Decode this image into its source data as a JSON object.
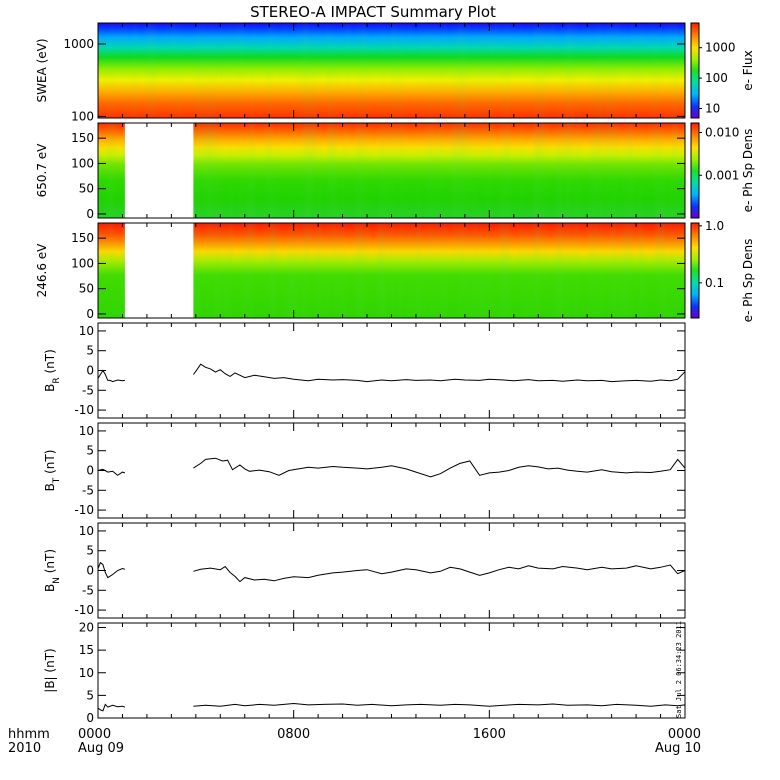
{
  "title": "STEREO-A IMPACT Summary Plot",
  "footer": {
    "left_top": "hhmm",
    "left_bottom": "2010",
    "time_ticks": [
      {
        "label": "0000",
        "sub": "Aug 09",
        "hour": 0
      },
      {
        "label": "0800",
        "sub": "",
        "hour": 8
      },
      {
        "label": "1600",
        "sub": "",
        "hour": 16
      },
      {
        "label": "0000",
        "sub": "Aug 10",
        "hour": 24
      }
    ],
    "stamp": "Sat Jul  2 06:34:23 2011"
  },
  "colors": {
    "frame": "#000000",
    "trace": "#000000",
    "nodata": "#ffffff"
  },
  "chart_data": [
    {
      "type": "heatmap",
      "id": "swea",
      "ylabel": "SWEA (eV)",
      "y_scale": "log",
      "ylim": [
        95,
        1950
      ],
      "yticks": [
        100,
        1000
      ],
      "ytick_labels": [
        "100",
        "1000"
      ],
      "colorbar_label": "e- Flux",
      "colorbar_scale": "log",
      "colorbar_ticks": [
        "10",
        "100",
        "1000"
      ],
      "data_gaps_hours": []
    },
    {
      "type": "heatmap",
      "id": "pad650",
      "ylabel": "650.7 eV",
      "ylim": [
        -8,
        180
      ],
      "yticks": [
        0,
        50,
        100,
        150
      ],
      "colorbar_label": "e- Ph Sp Dens",
      "colorbar_scale": "log",
      "colorbar_ticks": [
        "0.010",
        "0.001"
      ],
      "data_gaps_hours": [
        [
          1.1,
          3.9
        ]
      ]
    },
    {
      "type": "heatmap",
      "id": "pad246",
      "ylabel": "246.6 eV",
      "ylim": [
        -8,
        180
      ],
      "yticks": [
        0,
        50,
        100,
        150
      ],
      "colorbar_label": "e- Ph Sp Dens",
      "colorbar_scale": "log",
      "colorbar_ticks": [
        "1.0",
        "0.1"
      ],
      "data_gaps_hours": [
        [
          1.1,
          3.9
        ]
      ]
    },
    {
      "type": "line",
      "id": "br",
      "ylabel_main": "B",
      "ylabel_sub": "R",
      "ylabel_unit": " (nT)",
      "ylim": [
        -12,
        12
      ],
      "yticks": [
        -10,
        -5,
        0,
        5,
        10
      ],
      "series": [
        {
          "x": [
            0,
            0.1,
            0.2,
            0.3,
            0.4,
            0.5,
            0.6,
            0.8,
            1.0,
            1.1
          ],
          "y": [
            -2,
            -1,
            0,
            -1,
            -2.5,
            -2.5,
            -2.8,
            -2.4,
            -2.6,
            -2.5
          ]
        },
        {
          "x": [
            3.9,
            4.0,
            4.2,
            4.4,
            4.6,
            4.8,
            5.0,
            5.2,
            5.4,
            5.6,
            6.0,
            6.4,
            6.8,
            7.2,
            7.6,
            8.0,
            8.6,
            9.0,
            9.6,
            10.0,
            10.6,
            11.0,
            11.6,
            12.0,
            12.6,
            13.0,
            13.6,
            14.0,
            14.6,
            15.0,
            15.6,
            16.0,
            16.6,
            17.0,
            17.6,
            18.0,
            18.6,
            19.0,
            19.6,
            20.0,
            20.6,
            21.0,
            21.6,
            22.0,
            22.6,
            23.0,
            23.4,
            23.7,
            24.0
          ],
          "y": [
            -1,
            -0.2,
            1.6,
            0.8,
            0.4,
            -0.4,
            0.2,
            -0.8,
            -1.5,
            -0.6,
            -1.8,
            -1.2,
            -1.6,
            -2,
            -1.8,
            -2.2,
            -2.6,
            -2.2,
            -2.4,
            -2.3,
            -2.5,
            -2.8,
            -2.4,
            -2.6,
            -2.3,
            -2.5,
            -2.4,
            -2.6,
            -2.2,
            -2.4,
            -2.5,
            -2.2,
            -2.4,
            -2.6,
            -2.3,
            -2.6,
            -2.5,
            -2.7,
            -2.4,
            -2.6,
            -2.5,
            -2.8,
            -2.6,
            -2.5,
            -2.7,
            -2.4,
            -2.6,
            -2.2,
            -0.3
          ]
        }
      ]
    },
    {
      "type": "line",
      "id": "bt",
      "ylabel_main": "B",
      "ylabel_sub": "T",
      "ylabel_unit": " (nT)",
      "ylim": [
        -12,
        12
      ],
      "yticks": [
        -10,
        -5,
        0,
        5,
        10
      ],
      "series": [
        {
          "x": [
            0,
            0.2,
            0.4,
            0.6,
            0.8,
            1.0,
            1.1
          ],
          "y": [
            0,
            0.3,
            -0.4,
            -0.2,
            -1.2,
            -0.4,
            -0.6
          ]
        },
        {
          "x": [
            3.9,
            4.2,
            4.4,
            4.8,
            5.1,
            5.3,
            5.5,
            5.8,
            6.0,
            6.2,
            6.6,
            7.0,
            7.4,
            7.8,
            8.2,
            8.6,
            9.0,
            9.6,
            10.0,
            10.6,
            11.0,
            11.6,
            12.0,
            12.6,
            13.0,
            13.6,
            14.0,
            14.4,
            14.8,
            15.2,
            15.6,
            16.0,
            16.4,
            16.8,
            17.2,
            17.6,
            18.0,
            18.4,
            18.8,
            19.2,
            19.6,
            20.0,
            20.6,
            21.0,
            21.6,
            22.0,
            22.6,
            23.0,
            23.4,
            23.7,
            24.0
          ],
          "y": [
            0.6,
            1.8,
            2.8,
            3.1,
            2.4,
            2.6,
            0.2,
            1.4,
            0.4,
            -0.2,
            0.1,
            -0.3,
            -1.2,
            0,
            0.4,
            0.8,
            0.6,
            1,
            0.8,
            0.6,
            0.4,
            0.8,
            1.2,
            0.4,
            -0.4,
            -1.6,
            -0.8,
            0.6,
            1.8,
            2.4,
            -1.2,
            -0.6,
            -0.4,
            0,
            0.8,
            1.2,
            0.9,
            0.4,
            0.6,
            0.1,
            -0.2,
            -0.4,
            0.2,
            -0.3,
            -0.6,
            -0.4,
            -0.5,
            -0.2,
            0.2,
            2.8,
            0.6
          ]
        }
      ]
    },
    {
      "type": "line",
      "id": "bn",
      "ylabel_main": "B",
      "ylabel_sub": "N",
      "ylabel_unit": " (nT)",
      "ylim": [
        -12,
        12
      ],
      "yticks": [
        -10,
        -5,
        0,
        5,
        10
      ],
      "series": [
        {
          "x": [
            0,
            0.1,
            0.2,
            0.3,
            0.4,
            0.6,
            0.8,
            1.0,
            1.1
          ],
          "y": [
            0.5,
            2,
            1.5,
            -0.5,
            -1.8,
            -1,
            0,
            0.5,
            0.3
          ]
        },
        {
          "x": [
            3.9,
            4.2,
            4.6,
            5.0,
            5.2,
            5.4,
            5.6,
            5.8,
            6.0,
            6.4,
            6.8,
            7.2,
            7.6,
            8.0,
            8.6,
            9.0,
            9.6,
            10.0,
            10.6,
            11.0,
            11.6,
            12.0,
            12.6,
            13.0,
            13.6,
            14.0,
            14.4,
            14.8,
            15.2,
            15.6,
            16.0,
            16.4,
            16.8,
            17.2,
            17.6,
            18.0,
            18.6,
            19.0,
            19.6,
            20.0,
            20.6,
            21.0,
            21.6,
            22.0,
            22.6,
            23.0,
            23.4,
            23.7,
            24.0
          ],
          "y": [
            -0.2,
            0.3,
            0.6,
            0.2,
            1.0,
            -0.5,
            -1.5,
            -2.8,
            -1.8,
            -2.4,
            -2.2,
            -2.6,
            -2.0,
            -1.6,
            -1.8,
            -1.2,
            -0.6,
            -0.4,
            0.0,
            0.2,
            -0.8,
            -0.4,
            0.4,
            0.2,
            -0.6,
            -0.2,
            0.8,
            0.4,
            -0.4,
            -1.2,
            -0.6,
            0.2,
            0.8,
            0.4,
            1.2,
            0.6,
            0.4,
            1.0,
            0.6,
            0.2,
            0.8,
            0.4,
            0.6,
            1.2,
            0.4,
            0.8,
            1.4,
            -0.8,
            0.0
          ]
        }
      ]
    },
    {
      "type": "line",
      "id": "bmag",
      "ylabel_main": "|B| (nT)",
      "ylabel_sub": "",
      "ylabel_unit": "",
      "ylim": [
        0,
        21
      ],
      "yticks": [
        0,
        5,
        10,
        15,
        20
      ],
      "series": [
        {
          "x": [
            0,
            0.1,
            0.2,
            0.3,
            0.4,
            0.6,
            0.8,
            1.0,
            1.1
          ],
          "y": [
            2.2,
            1.8,
            1.6,
            3.0,
            2.4,
            2.8,
            2.5,
            2.6,
            2.4
          ]
        },
        {
          "x": [
            3.9,
            4.4,
            5.0,
            5.6,
            6.0,
            6.6,
            7.2,
            8.0,
            8.6,
            9.2,
            10.0,
            10.6,
            11.2,
            12.0,
            12.6,
            13.2,
            14.0,
            14.6,
            15.2,
            16.0,
            16.6,
            17.2,
            18.0,
            18.6,
            19.2,
            20.0,
            20.6,
            21.2,
            22.0,
            22.6,
            23.2,
            23.7,
            24.0
          ],
          "y": [
            2.6,
            2.8,
            2.6,
            3.0,
            2.7,
            3.0,
            2.8,
            3.2,
            2.9,
            3.0,
            3.1,
            2.8,
            3.0,
            2.7,
            2.9,
            3.0,
            2.8,
            3.0,
            2.9,
            2.6,
            2.8,
            3.0,
            2.9,
            3.1,
            2.8,
            2.9,
            2.7,
            3.0,
            2.8,
            2.6,
            2.9,
            2.7,
            2.9
          ]
        }
      ]
    }
  ]
}
